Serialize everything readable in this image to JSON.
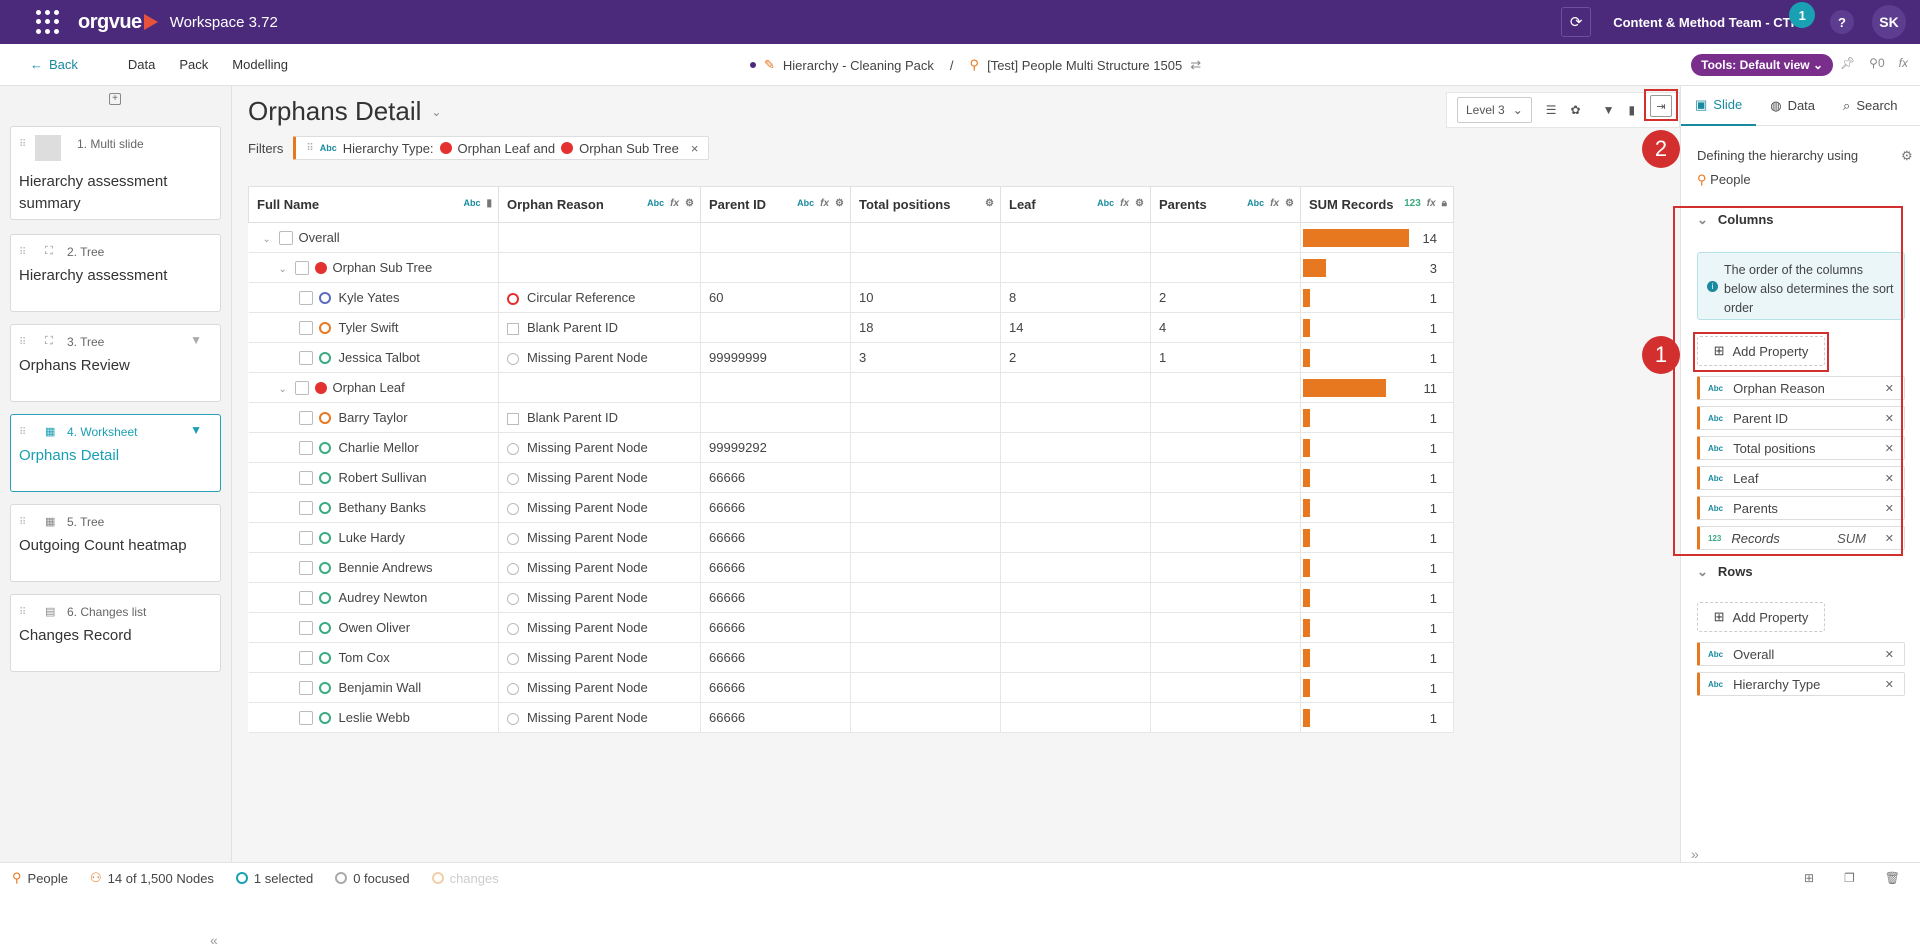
{
  "app": {
    "name": "orgvue",
    "workspace": "Workspace",
    "version": "3.72",
    "team": "Content & Method Team - CTR",
    "notif_count": "1",
    "help": "?",
    "avatar": "SK"
  },
  "nav": {
    "back": "Back",
    "links": [
      "Data",
      "Pack",
      "Modelling"
    ],
    "pack": "Hierarchy - Cleaning Pack",
    "sep": "/",
    "dataset": "[Test] People Multi Structure 1505",
    "tools": "Tools: Default view",
    "count": "0",
    "fx": "fx"
  },
  "slides": [
    {
      "num": "1. Multi slide",
      "title": "Hierarchy assessment summary"
    },
    {
      "num": "2. Tree",
      "title": "Hierarchy assessment"
    },
    {
      "num": "3. Tree",
      "title": "Orphans Review"
    },
    {
      "num": "4. Worksheet",
      "title": "Orphans Detail"
    },
    {
      "num": "5. Tree",
      "title": "Outgoing Count heatmap"
    },
    {
      "num": "6. Changes list",
      "title": "Changes Record"
    }
  ],
  "main": {
    "title": "Orphans Detail",
    "filters_label": "Filters",
    "filter_abc": "Abc",
    "filter_text": "Hierarchy Type:",
    "filter_a": "Orphan Leaf and",
    "filter_b": "Orphan Sub Tree",
    "filter_x": "×",
    "level": "Level 3"
  },
  "table": {
    "headers": [
      "Full Name",
      "Orphan Reason",
      "Parent ID",
      "Total positions",
      "Leaf",
      "Parents",
      "SUM Records"
    ],
    "rows": [
      {
        "name": "Overall",
        "type": "group",
        "sum": "14",
        "pct": 0.92
      },
      {
        "name": "Orphan Sub Tree",
        "type": "sub",
        "sum": "3",
        "pct": 0.2
      },
      {
        "name": "Kyle Yates",
        "c": "blue",
        "reason": "Circular Reference",
        "ricon": "red",
        "pid": "60",
        "tp": "10",
        "leaf": "8",
        "par": "2",
        "sum": "1",
        "pct": 0.06
      },
      {
        "name": "Tyler Swift",
        "c": "orange",
        "reason": "Blank Parent ID",
        "ricon": "sq",
        "pid": "",
        "tp": "18",
        "leaf": "14",
        "par": "4",
        "sum": "1",
        "pct": 0.06
      },
      {
        "name": "Jessica Talbot",
        "c": "green",
        "reason": "Missing Parent Node",
        "ricon": "grey",
        "pid": "99999999",
        "tp": "3",
        "leaf": "2",
        "par": "1",
        "sum": "1",
        "pct": 0.06
      },
      {
        "name": "Orphan Leaf",
        "type": "sub",
        "sum": "11",
        "pct": 0.72
      },
      {
        "name": "Barry Taylor",
        "c": "orange",
        "reason": "Blank Parent ID",
        "ricon": "sq",
        "pid": "",
        "sum": "1",
        "pct": 0.06
      },
      {
        "name": "Charlie Mellor",
        "c": "green",
        "reason": "Missing Parent Node",
        "ricon": "grey",
        "pid": "99999292",
        "sum": "1",
        "pct": 0.06
      },
      {
        "name": "Robert Sullivan",
        "c": "green",
        "reason": "Missing Parent Node",
        "ricon": "grey",
        "pid": "66666",
        "sum": "1",
        "pct": 0.06
      },
      {
        "name": "Bethany Banks",
        "c": "green",
        "reason": "Missing Parent Node",
        "ricon": "grey",
        "pid": "66666",
        "sum": "1",
        "pct": 0.06
      },
      {
        "name": "Luke Hardy",
        "c": "green",
        "reason": "Missing Parent Node",
        "ricon": "grey",
        "pid": "66666",
        "sum": "1",
        "pct": 0.06
      },
      {
        "name": "Bennie Andrews",
        "c": "green",
        "reason": "Missing Parent Node",
        "ricon": "grey",
        "pid": "66666",
        "sum": "1",
        "pct": 0.06
      },
      {
        "name": "Audrey Newton",
        "c": "green",
        "reason": "Missing Parent Node",
        "ricon": "grey",
        "pid": "66666",
        "sum": "1",
        "pct": 0.06
      },
      {
        "name": "Owen Oliver",
        "c": "green",
        "reason": "Missing Parent Node",
        "ricon": "grey",
        "pid": "66666",
        "sum": "1",
        "pct": 0.06
      },
      {
        "name": "Tom Cox",
        "c": "green",
        "reason": "Missing Parent Node",
        "ricon": "grey",
        "pid": "66666",
        "sum": "1",
        "pct": 0.06
      },
      {
        "name": "Benjamin Wall",
        "c": "green",
        "reason": "Missing Parent Node",
        "ricon": "grey",
        "pid": "66666",
        "sum": "1",
        "pct": 0.06
      },
      {
        "name": "Leslie Webb",
        "c": "green",
        "reason": "Missing Parent Node",
        "ricon": "grey",
        "pid": "66666",
        "sum": "1",
        "pct": 0.06
      }
    ]
  },
  "panel": {
    "tabs": [
      "Slide",
      "Data",
      "Search"
    ],
    "defining": "Defining the hierarchy using",
    "people": "People",
    "columns": "Columns",
    "info": "The order of the columns below also determines the sort order",
    "add_property": "Add Property",
    "column_props": [
      "Orphan Reason",
      "Parent ID",
      "Total positions",
      "Leaf",
      "Parents"
    ],
    "records": "Records",
    "sum": "SUM",
    "num_tag": "123",
    "abc_tag": "Abc",
    "rows": "Rows",
    "row_props": [
      "Overall",
      "Hierarchy Type"
    ]
  },
  "badges": {
    "one": "1",
    "two": "2"
  },
  "status": {
    "people": "People",
    "nodes": "14 of 1,500 Nodes",
    "selected": "1 selected",
    "focused": "0 focused",
    "changes": "changes"
  },
  "colors": {
    "brand": "#4b2a7b",
    "accent": "#1a8aa0",
    "bar": "#e8781f",
    "highlight": "#d32f2f"
  }
}
